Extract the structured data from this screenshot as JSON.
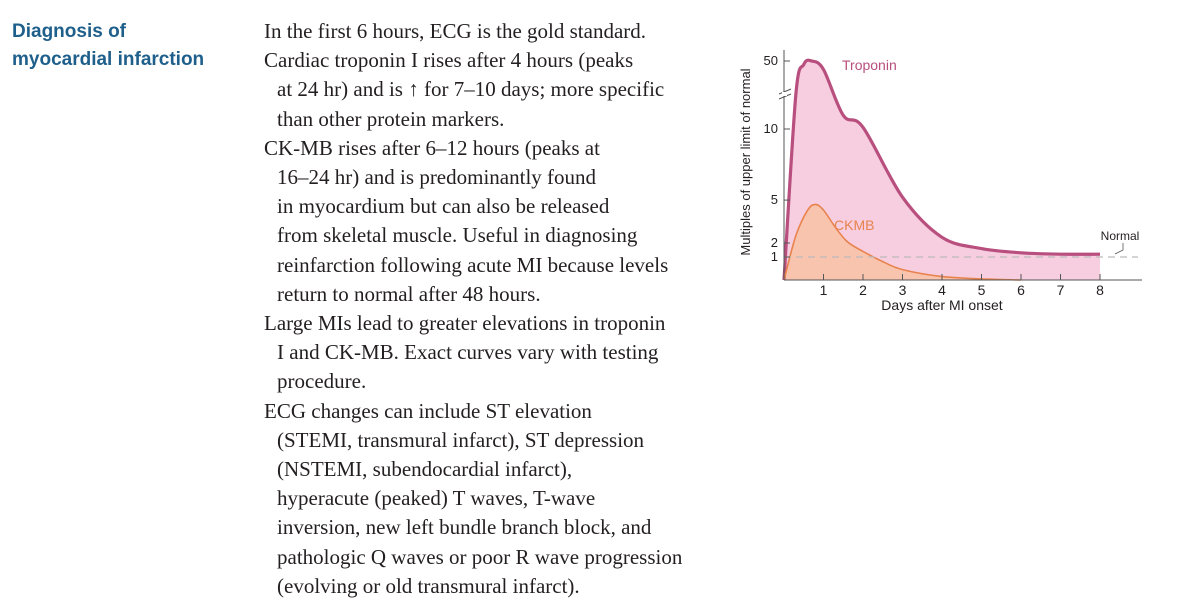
{
  "section": {
    "heading_lines": [
      "Diagnosis of",
      "myocardial infarction"
    ]
  },
  "paragraphs": [
    {
      "lines": [
        "In the first 6 hours, ECG is the gold standard."
      ]
    },
    {
      "lines": [
        "Cardiac troponin I rises after 4 hours (peaks",
        "at 24 hr) and is ↑ for 7–10 days; more specific",
        "than other protein markers."
      ]
    },
    {
      "lines": [
        "CK-MB rises after 6–12 hours (peaks at",
        "16–24 hr) and is predominantly found",
        "in myocardium but can also be released",
        "from skeletal muscle. Useful in diagnosing",
        "reinfarction following acute MI because levels",
        "return to normal after 48 hours."
      ]
    },
    {
      "lines": [
        "Large MIs lead to greater elevations in troponin",
        "I and CK-MB. Exact curves vary with testing",
        "procedure."
      ]
    },
    {
      "lines": [
        "ECG changes can include ST elevation",
        "(STEMI, transmural infarct), ST depression",
        "(NSTEMI, subendocardial infarct),",
        "hyperacute (peaked) T waves, T-wave",
        "inversion, new left bundle branch block, and",
        "pathologic Q waves or poor R wave progression",
        "(evolving or old transmural infarct)."
      ]
    }
  ],
  "chart_data": {
    "type": "area",
    "xlabel": "Days after MI onset",
    "ylabel": "Multiples of upper limit of normal",
    "x_ticks": [
      1,
      2,
      3,
      4,
      5,
      6,
      7,
      8
    ],
    "y_ticks": [
      1,
      2,
      5,
      10,
      50
    ],
    "y_axis_break": true,
    "xlim": [
      0,
      8
    ],
    "series": [
      {
        "name": "Troponin",
        "color": "#b84f7e",
        "fill": "#f6c6d9",
        "points": [
          [
            0,
            0
          ],
          [
            0.3,
            30
          ],
          [
            0.5,
            48
          ],
          [
            0.7,
            50
          ],
          [
            1.0,
            45
          ],
          [
            1.5,
            18
          ],
          [
            2.0,
            11
          ],
          [
            3.0,
            5.2
          ],
          [
            4.0,
            2.4
          ],
          [
            5.0,
            1.6
          ],
          [
            6.0,
            1.3
          ],
          [
            7.0,
            1.2
          ],
          [
            8.0,
            1.2
          ]
        ]
      },
      {
        "name": "CKMB",
        "color": "#e8834e",
        "fill": "#f7c3a8",
        "points": [
          [
            0,
            0
          ],
          [
            0.3,
            2.5
          ],
          [
            0.6,
            4.3
          ],
          [
            0.8,
            4.7
          ],
          [
            1.0,
            4.3
          ],
          [
            1.3,
            3.1
          ],
          [
            1.6,
            2.1
          ],
          [
            2.0,
            1.4
          ],
          [
            2.5,
            0.8
          ],
          [
            3.0,
            0.45
          ],
          [
            4.0,
            0.15
          ],
          [
            5.0,
            0.05
          ],
          [
            6.0,
            0.0
          ]
        ]
      }
    ],
    "reference_line": {
      "label": "Normal",
      "y": 1
    },
    "colors": {
      "axis": "#555555",
      "text": "#231f20",
      "normal_line": "#bbbbbb"
    }
  }
}
